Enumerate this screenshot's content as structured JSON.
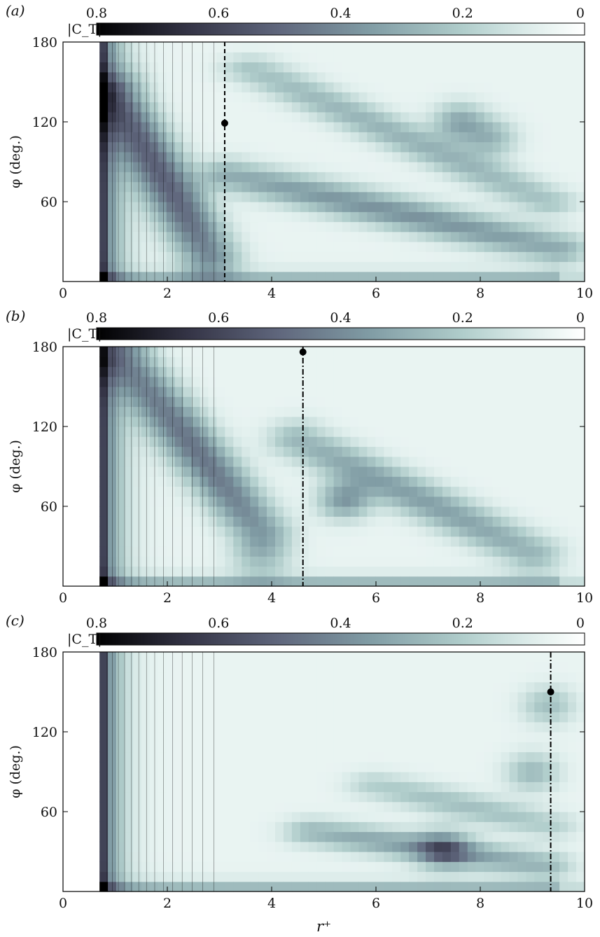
{
  "chart_data": [
    {
      "type": "heatmap",
      "panel_label": "(a)",
      "colorbar": {
        "label": "|C_T|",
        "ticks": [
          "0.8",
          "0.6",
          "0.4",
          "0.2",
          "0"
        ],
        "range": [
          0.8,
          0
        ]
      },
      "xlabel": "",
      "ylabel": "φ (deg.)",
      "xticks": [
        "0",
        "2",
        "4",
        "6",
        "8",
        "10"
      ],
      "yticks": [
        "60",
        "120",
        "180"
      ],
      "xlim": [
        0,
        10
      ],
      "ylim": [
        0,
        180
      ],
      "blank_region_r_max": 0.7,
      "marker": {
        "r": 3.1,
        "phi": 119,
        "line_style": "dashed"
      },
      "features": [
        {
          "kind": "ridge",
          "r0": 1.0,
          "phi0": 140,
          "r1": 2.8,
          "phi1": 20,
          "level": 0.45,
          "width": 18
        },
        {
          "kind": "band",
          "r0": 3.2,
          "phi0": 80,
          "r1": 9.5,
          "phi1": 25,
          "level": 0.32,
          "width": 12
        },
        {
          "kind": "band",
          "r0": 3.6,
          "phi0": 160,
          "r1": 9.3,
          "phi1": 60,
          "level": 0.22,
          "width": 10
        },
        {
          "kind": "spot",
          "r": 7.6,
          "phi": 120,
          "level": 0.25
        },
        {
          "kind": "spot",
          "r": 8.2,
          "phi": 108,
          "level": 0.2
        }
      ]
    },
    {
      "type": "heatmap",
      "panel_label": "(b)",
      "colorbar": {
        "label": "|C_T|",
        "ticks": [
          "0.8",
          "0.6",
          "0.4",
          "0.2",
          "0"
        ],
        "range": [
          0.8,
          0
        ]
      },
      "xlabel": "",
      "ylabel": "φ (deg.)",
      "xticks": [
        "0",
        "2",
        "4",
        "6",
        "8",
        "10"
      ],
      "yticks": [
        "60",
        "120",
        "180"
      ],
      "xlim": [
        0,
        10
      ],
      "ylim": [
        0,
        180
      ],
      "blank_region_r_max": 0.7,
      "marker": {
        "r": 4.6,
        "phi": 176,
        "line_style": "dash-dot"
      },
      "features": [
        {
          "kind": "ridge",
          "r0": 1.2,
          "phi0": 170,
          "r1": 3.8,
          "phi1": 40,
          "level": 0.4,
          "width": 30
        },
        {
          "kind": "band",
          "r0": 4.5,
          "phi0": 110,
          "r1": 9.0,
          "phi1": 25,
          "level": 0.28,
          "width": 14
        },
        {
          "kind": "spot",
          "r": 5.4,
          "phi": 65,
          "level": 0.3
        }
      ]
    },
    {
      "type": "heatmap",
      "panel_label": "(c)",
      "colorbar": {
        "label": "|C_T|",
        "ticks": [
          "0.8",
          "0.6",
          "0.4",
          "0.2",
          "0"
        ],
        "range": [
          0.8,
          0
        ]
      },
      "xlabel": "r⁺",
      "ylabel": "φ (deg.)",
      "xticks": [
        "0",
        "2",
        "4",
        "6",
        "8",
        "10"
      ],
      "yticks": [
        "60",
        "120",
        "180"
      ],
      "xlim": [
        0,
        10
      ],
      "ylim": [
        0,
        180
      ],
      "blank_region_r_max": 0.7,
      "marker": {
        "r": 9.35,
        "phi": 150,
        "line_style": "dash-dot"
      },
      "features": [
        {
          "kind": "band",
          "r0": 4.8,
          "phi0": 45,
          "r1": 9.2,
          "phi1": 20,
          "level": 0.28,
          "width": 10
        },
        {
          "kind": "band",
          "r0": 6.0,
          "phi0": 80,
          "r1": 9.3,
          "phi1": 50,
          "level": 0.18,
          "width": 10
        },
        {
          "kind": "spot",
          "r": 7.3,
          "phi": 32,
          "level": 0.3
        },
        {
          "kind": "spot",
          "r": 9.0,
          "phi": 90,
          "level": 0.2
        },
        {
          "kind": "spot",
          "r": 9.3,
          "phi": 140,
          "level": 0.18
        }
      ]
    }
  ]
}
